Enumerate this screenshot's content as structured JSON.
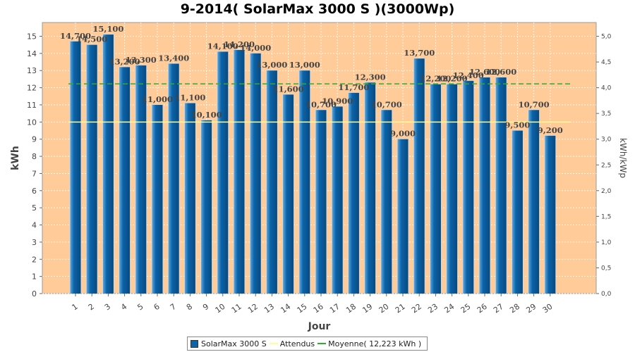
{
  "title": "9-2014( SolarMax 3000 S )(3000Wp)",
  "chart_data": {
    "type": "bar",
    "categories": [
      "1",
      "2",
      "3",
      "4",
      "5",
      "6",
      "7",
      "8",
      "9",
      "10",
      "11",
      "12",
      "13",
      "14",
      "15",
      "16",
      "17",
      "18",
      "19",
      "20",
      "21",
      "22",
      "23",
      "24",
      "25",
      "26",
      "27",
      "28",
      "29",
      "30"
    ],
    "series": [
      {
        "name": "SolarMax 3000 S",
        "values": [
          14.7,
          14.5,
          15.1,
          13.2,
          13.3,
          11.0,
          13.4,
          11.1,
          10.1,
          14.1,
          14.2,
          14.0,
          13.0,
          11.6,
          13.0,
          10.7,
          10.9,
          11.7,
          12.3,
          10.7,
          9.0,
          13.7,
          12.2,
          12.2,
          12.4,
          12.6,
          12.6,
          9.5,
          10.7,
          9.2
        ],
        "labels": [
          "14,700",
          "14,500",
          "15,100",
          "13,200",
          "13,300",
          "11,000",
          "13,400",
          "11,100",
          "10,100",
          "14,100",
          "14,200",
          "14,000",
          "13,000",
          "11,600",
          "13,000",
          "10,700",
          "10,900",
          "11,700",
          "12,300",
          "10,700",
          "9,000",
          "13,700",
          "12,200",
          "12,200",
          "12,400",
          "12,600",
          "12,600",
          "9,500",
          "10,700",
          "9,200"
        ],
        "color": "#0b63a8"
      }
    ],
    "attendus": 10.0,
    "moyenne": 12.223,
    "xlabel": "Jour",
    "ylabel": "kWh",
    "y2label": "kWh/kWp",
    "ylim": [
      0,
      15.8
    ],
    "yticks": [
      "0",
      "1",
      "2",
      "3",
      "4",
      "5",
      "6",
      "7",
      "8",
      "9",
      "10",
      "11",
      "12",
      "13",
      "14",
      "15"
    ],
    "y2lim": [
      0,
      5.267
    ],
    "y2ticks": [
      "0,0",
      "0,5",
      "1,0",
      "1,5",
      "2,0",
      "2,5",
      "3,0",
      "3,5",
      "4,0",
      "4,5",
      "5,0"
    ],
    "grid": true,
    "legend_position": "bottom",
    "colors": {
      "plot_background": "#ffcc99",
      "bar": "#0b63a8",
      "attendus_line": "#ffff99",
      "moyenne_line": "#33aa33"
    }
  },
  "legend": {
    "bar": "SolarMax 3000 S",
    "attendus": "Attendus",
    "moyenne": "Moyenne( 12,223 kWh )"
  }
}
